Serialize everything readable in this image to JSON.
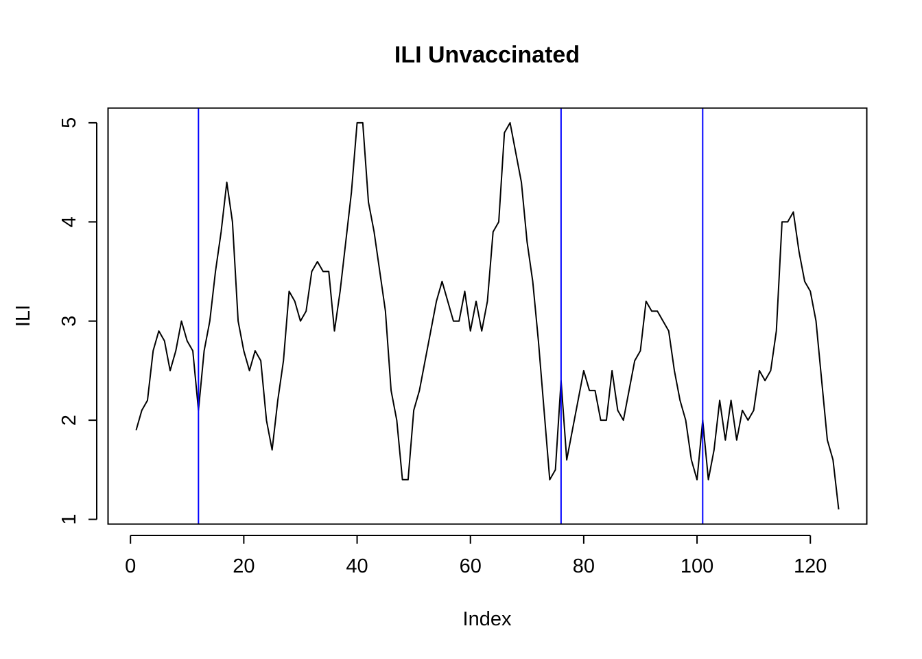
{
  "chart_data": {
    "type": "line",
    "title": "ILI Unvaccinated",
    "xlabel": "Index",
    "ylabel": "ILI",
    "xlim": [
      -3.96,
      129.96
    ],
    "ylim": [
      0.952,
      5.148
    ],
    "x_ticks": [
      0,
      20,
      40,
      60,
      80,
      100,
      120
    ],
    "y_ticks": [
      1,
      2,
      3,
      4,
      5
    ],
    "grid": false,
    "series": [
      {
        "color": "#000000",
        "x": [
          1,
          2,
          3,
          4,
          5,
          6,
          7,
          8,
          9,
          10,
          11,
          12,
          13,
          14,
          15,
          16,
          17,
          18,
          19,
          20,
          21,
          22,
          23,
          24,
          25,
          26,
          27,
          28,
          29,
          30,
          31,
          32,
          33,
          34,
          35,
          36,
          37,
          38,
          39,
          40,
          41,
          42,
          43,
          44,
          45,
          46,
          47,
          48,
          49,
          50,
          51,
          52,
          53,
          54,
          55,
          56,
          57,
          58,
          59,
          60,
          61,
          62,
          63,
          64,
          65,
          66,
          67,
          68,
          69,
          70,
          71,
          72,
          73,
          74,
          75,
          76,
          77,
          78,
          79,
          80,
          81,
          82,
          83,
          84,
          85,
          86,
          87,
          88,
          89,
          90,
          91,
          92,
          93,
          94,
          95,
          96,
          97,
          98,
          99,
          100,
          101,
          102,
          103,
          104,
          105,
          106,
          107,
          108,
          109,
          110,
          111,
          112,
          113,
          114,
          115,
          116,
          117,
          118,
          119,
          120,
          121,
          122,
          123,
          124,
          125
        ],
        "values": [
          1.9,
          2.1,
          2.2,
          2.7,
          2.9,
          2.8,
          2.5,
          2.7,
          3.0,
          2.8,
          2.7,
          2.1,
          2.7,
          3.0,
          3.5,
          3.9,
          4.4,
          4.0,
          3.0,
          2.7,
          2.5,
          2.7,
          2.6,
          2.0,
          1.7,
          2.2,
          2.6,
          3.3,
          3.2,
          3.0,
          3.1,
          3.5,
          3.6,
          3.5,
          3.5,
          2.9,
          3.3,
          3.8,
          4.3,
          5.0,
          5.0,
          4.2,
          3.9,
          3.5,
          3.1,
          2.3,
          2.0,
          1.4,
          1.4,
          2.1,
          2.3,
          2.6,
          2.9,
          3.2,
          3.4,
          3.2,
          3.0,
          3.0,
          3.3,
          2.9,
          3.2,
          2.9,
          3.2,
          3.9,
          4.0,
          4.9,
          5.0,
          4.7,
          4.4,
          3.8,
          3.4,
          2.8,
          2.1,
          1.4,
          1.5,
          2.4,
          1.6,
          1.9,
          2.2,
          2.5,
          2.3,
          2.3,
          2.0,
          2.0,
          2.5,
          2.1,
          2.0,
          2.3,
          2.6,
          2.7,
          3.2,
          3.1,
          3.1,
          3.0,
          2.9,
          2.5,
          2.2,
          2.0,
          1.6,
          1.4,
          2.0,
          1.4,
          1.7,
          2.2,
          1.8,
          2.2,
          1.8,
          2.1,
          2.0,
          2.1,
          2.5,
          2.4,
          2.5,
          2.9,
          4.0,
          4.0,
          4.1,
          3.7,
          3.4,
          3.3,
          3.0,
          2.4,
          1.8,
          1.6,
          1.1
        ]
      }
    ],
    "vlines": {
      "color": "#0000ff",
      "x": [
        12,
        76,
        101
      ]
    }
  }
}
